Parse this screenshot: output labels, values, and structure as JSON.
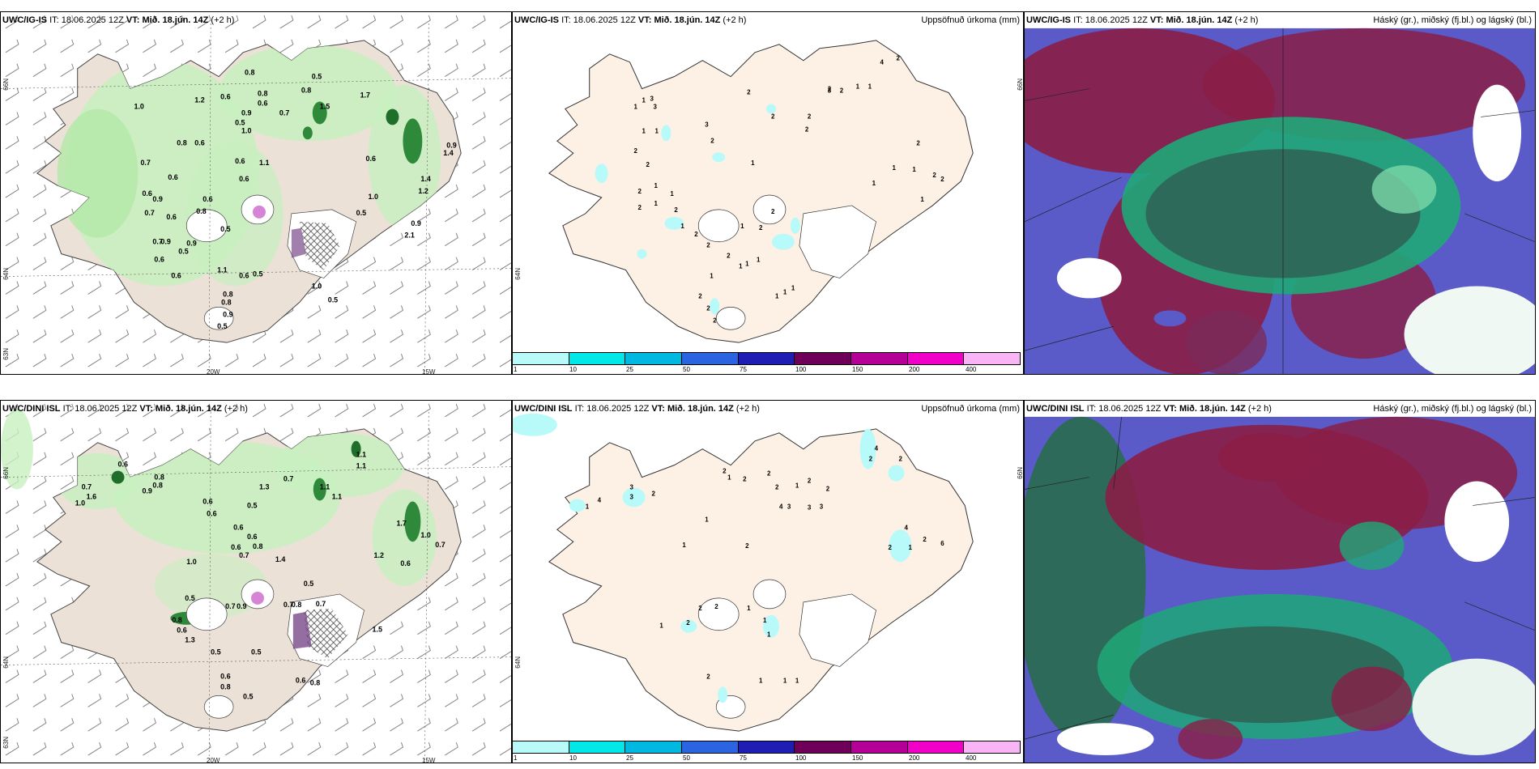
{
  "panels": {
    "top_left": {
      "model": "UWC/IG-IS",
      "it_label": "IT:",
      "it": "18.06.2025 12Z",
      "vt_label": "VT:",
      "vt": "Mið. 18.jún. 14Z",
      "lead": "(+2 h)"
    },
    "top_middle": {
      "model": "UWC/IG-IS",
      "it_label": "IT:",
      "it": "18.06.2025 12Z",
      "vt_label": "VT:",
      "vt": "Mið. 18.jún. 14Z",
      "lead": "(+2 h)",
      "right_title": "Uppsöfnuð úrkoma (mm)"
    },
    "top_right": {
      "model": "UWC/IG-IS",
      "it_label": "IT:",
      "it": "18.06.2025 12Z",
      "vt_label": "VT:",
      "vt": "Mið. 18.jún. 14Z",
      "lead": "(+2 h)",
      "right_title": "Háský (gr.), miðský (fj.bl.) og lágský (bl.)"
    },
    "bottom_left": {
      "model": "UWC/DINI ISL",
      "it_label": "IT:",
      "it": "18.06.2025 12Z",
      "vt_label": "VT:",
      "vt": "Mið. 18.jún. 14Z",
      "lead": "(+2 h)"
    },
    "bottom_middle": {
      "model": "UWC/DINI ISL",
      "it_label": "IT:",
      "it": "18.06.2025 12Z",
      "vt_label": "VT:",
      "vt": "Mið. 18.jún. 14Z",
      "lead": "(+2 h)",
      "right_title": "Uppsöfnuð úrkoma (mm)"
    },
    "bottom_right": {
      "model": "UWC/DINI ISL",
      "it_label": "IT:",
      "it": "18.06.2025 12Z",
      "vt_label": "VT:",
      "vt": "Mið. 18.jún. 14Z",
      "lead": "(+2 h)",
      "right_title": "Háský (gr.), miðský (fj.bl.) og lágský (bl.)"
    }
  },
  "axes": {
    "lon_20": "20W",
    "lon_15": "15W",
    "lat_66": "66N",
    "lat_64": "64N",
    "lat_63": "63N"
  },
  "colorbar": {
    "labels": [
      "1",
      "10",
      "25",
      "50",
      "75",
      "100",
      "150",
      "200",
      "400"
    ],
    "colors": [
      "#b8fafa",
      "#00e8e8",
      "#00b8e0",
      "#2a64e0",
      "#1e1eb4",
      "#6e005a",
      "#b40096",
      "#f000c8",
      "#f8b4f4"
    ]
  },
  "values": {
    "tl": [
      "1.0",
      "1.2",
      "0.6",
      "0.8",
      "0.6",
      "0.8",
      "0.7",
      "0.8",
      "0.5",
      "1.5",
      "0.9",
      "1.0",
      "0.5",
      "0.6",
      "0.8",
      "0.7",
      "0.6",
      "1.1",
      "0.6",
      "0.6",
      "0.9",
      "0.7",
      "0.6",
      "0.9",
      "0.8",
      "0.6",
      "0.5",
      "0.6",
      "0.7",
      "0.6",
      "0.5",
      "0.9",
      "1.1",
      "0.6",
      "0.8",
      "0.5",
      "1.0",
      "0.8",
      "0.9",
      "0.5",
      "0.5",
      "0.5",
      "1.0",
      "0.9",
      "2.1",
      "1.4",
      "1.2",
      "0.9",
      "1.4",
      "0.6",
      "0.6",
      "1.7"
    ],
    "tm": [
      "1",
      "1",
      "3",
      "3",
      "1",
      "2",
      "1",
      "2",
      "1",
      "3",
      "2",
      "2",
      "2",
      "1",
      "1",
      "2",
      "1",
      "2",
      "2",
      "2",
      "2",
      "2",
      "1",
      "1",
      "2",
      "1",
      "1",
      "2",
      "2",
      "1",
      "1",
      "1",
      "1",
      "2",
      "2",
      "1",
      "2",
      "2",
      "2",
      "1",
      "4",
      "2",
      "2",
      "1",
      "3",
      "2",
      "1",
      "1",
      "1",
      "2",
      "1",
      "2"
    ],
    "bl": [
      "0.7",
      "0.6",
      "0.8",
      "0.9",
      "1.6",
      "1.0",
      "0.6",
      "1.3",
      "0.5",
      "0.6",
      "0.8",
      "0.7",
      "1.1",
      "1.1",
      "1.1",
      "0.6",
      "0.6",
      "1.4",
      "0.6",
      "0.7",
      "1.0",
      "0.5",
      "0.7",
      "0.9",
      "0.8",
      "0.6",
      "1.3",
      "0.7",
      "0.8",
      "0.5",
      "0.5",
      "0.5",
      "0.6",
      "0.8",
      "0.5",
      "0.6",
      "0.8",
      "1.5",
      "1.2",
      "0.6",
      "0.7",
      "1.0",
      "1.7",
      "1.1",
      "0.8",
      "0.7"
    ],
    "bm": [
      "2",
      "1",
      "2",
      "3",
      "3",
      "4",
      "1",
      "2",
      "2",
      "2",
      "1",
      "2",
      "2",
      "3",
      "3",
      "2",
      "4",
      "2",
      "4",
      "6",
      "2",
      "1",
      "2",
      "1",
      "1",
      "2",
      "2",
      "2",
      "1",
      "2",
      "1",
      "1",
      "1",
      "1",
      "1",
      "1",
      "2",
      "4",
      "3"
    ]
  }
}
